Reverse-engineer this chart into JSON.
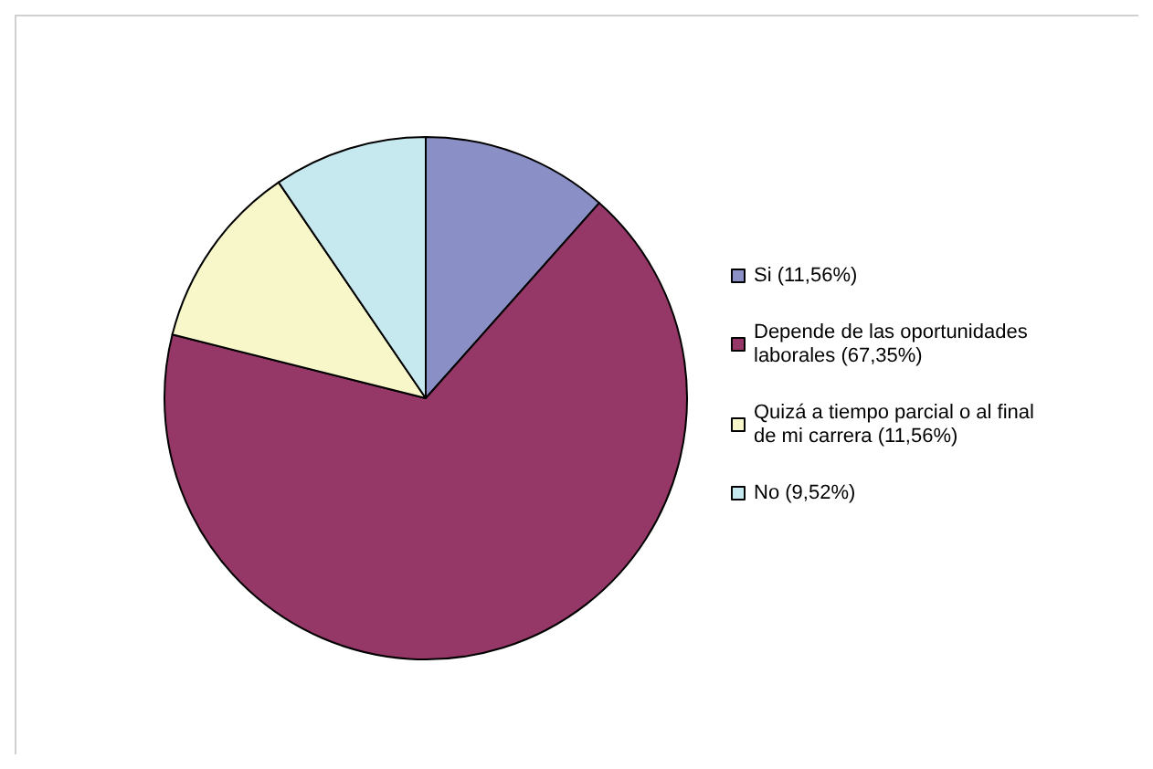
{
  "chart_data": {
    "type": "pie",
    "categories": [
      "Si (11,56%)",
      "Depende de las oportunidades laborales (67,35%)",
      "Quizá a tiempo parcial o al final de mi carrera (11,56%)",
      "No (9,52%)"
    ],
    "values": [
      11.56,
      67.35,
      11.56,
      9.52
    ],
    "colors": [
      "#8a8fc6",
      "#953767",
      "#f7f7c9",
      "#c6e8ef"
    ],
    "legend": "right"
  }
}
